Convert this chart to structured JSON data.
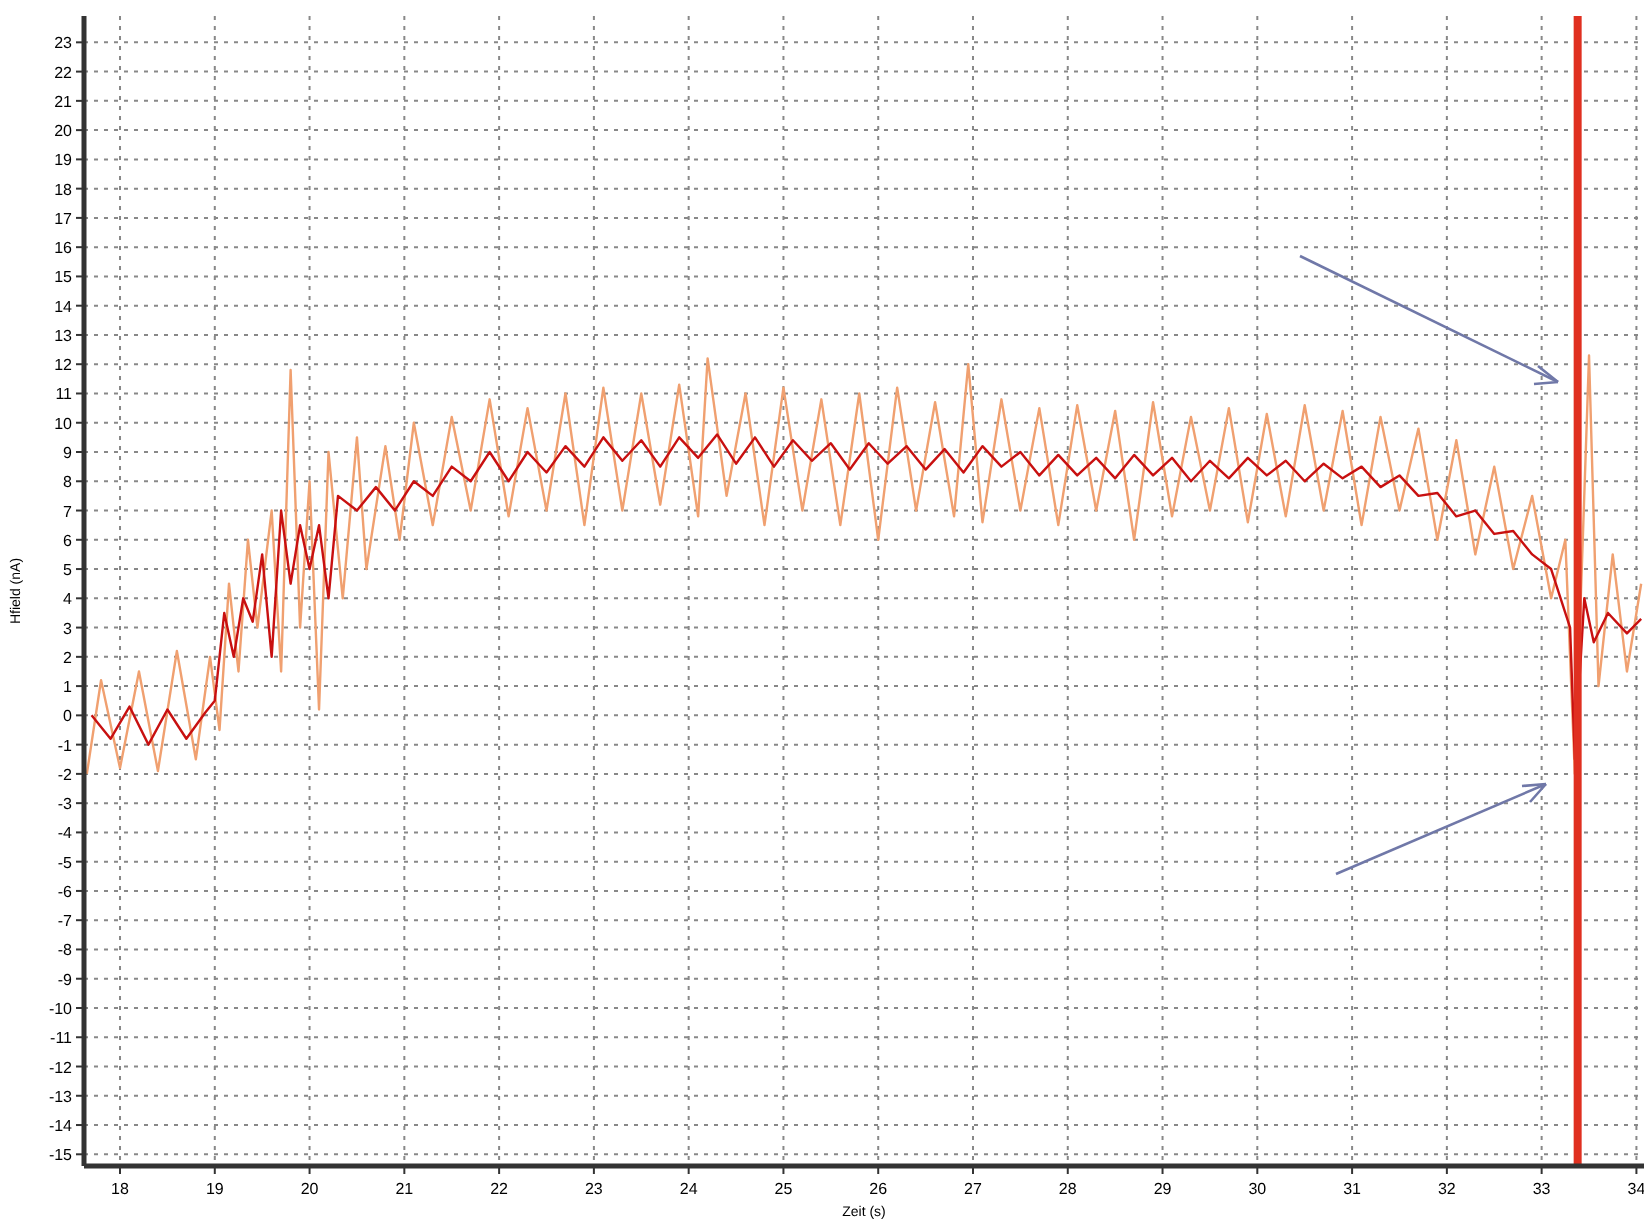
{
  "chart_data": {
    "type": "line",
    "xlabel": "Zeit (s)",
    "ylabel": "Hfield (nA)",
    "xlim": [
      17.62,
      34.08
    ],
    "ylim": [
      -15.4,
      23.9
    ],
    "xticks": [
      18,
      19,
      20,
      21,
      22,
      23,
      24,
      25,
      26,
      27,
      28,
      29,
      30,
      31,
      32,
      33,
      34
    ],
    "yticks": [
      -15,
      -14,
      -13,
      -12,
      -11,
      -10,
      -9,
      -8,
      -7,
      -6,
      -5,
      -4,
      -3,
      -2,
      -1,
      0,
      1,
      2,
      3,
      4,
      5,
      6,
      7,
      8,
      9,
      10,
      11,
      12,
      13,
      14,
      15,
      16,
      17,
      18,
      19,
      20,
      21,
      22,
      23
    ],
    "grid": true,
    "marker": "none",
    "line_style": "solid",
    "ref_lines": [
      {
        "axis": "x",
        "value": 33.38,
        "color": "#e03020"
      }
    ],
    "series": [
      {
        "color": "#f0a070",
        "x": [
          17.65,
          17.8,
          18.0,
          18.2,
          18.4,
          18.6,
          18.8,
          18.95,
          19.05,
          19.15,
          19.25,
          19.35,
          19.45,
          19.6,
          19.7,
          19.8,
          19.9,
          20.0,
          20.1,
          20.2,
          20.35,
          20.5,
          20.6,
          20.8,
          20.95,
          21.1,
          21.3,
          21.5,
          21.7,
          21.9,
          22.1,
          22.3,
          22.5,
          22.7,
          22.9,
          23.1,
          23.3,
          23.5,
          23.7,
          23.9,
          24.1,
          24.2,
          24.4,
          24.6,
          24.8,
          25.0,
          25.2,
          25.4,
          25.6,
          25.8,
          26.0,
          26.2,
          26.4,
          26.6,
          26.8,
          26.95,
          27.1,
          27.3,
          27.5,
          27.7,
          27.9,
          28.1,
          28.3,
          28.5,
          28.7,
          28.9,
          29.1,
          29.3,
          29.5,
          29.7,
          29.9,
          30.1,
          30.3,
          30.5,
          30.7,
          30.9,
          31.1,
          31.3,
          31.5,
          31.7,
          31.9,
          32.1,
          32.3,
          32.5,
          32.7,
          32.9,
          33.1,
          33.25,
          33.35,
          33.5,
          33.6,
          33.75,
          33.9,
          34.05
        ],
        "values": [
          -2,
          1.2,
          -1.8,
          1.5,
          -1.9,
          2.2,
          -1.5,
          2,
          -0.5,
          4.5,
          1.5,
          6,
          3,
          7,
          1.5,
          11.8,
          3,
          8,
          0.2,
          9,
          4,
          9.5,
          5,
          9.2,
          6,
          10,
          6.5,
          10.2,
          7,
          10.8,
          6.8,
          10.5,
          7,
          11,
          6.5,
          11.2,
          7,
          11,
          7.2,
          11.3,
          6.8,
          12.2,
          7.5,
          11,
          6.5,
          11.2,
          7,
          10.8,
          6.5,
          11,
          6,
          11.2,
          7,
          10.7,
          6.8,
          12,
          6.6,
          10.8,
          7,
          10.5,
          6.5,
          10.6,
          7,
          10.4,
          6,
          10.7,
          6.8,
          10.2,
          7,
          10.5,
          6.6,
          10.3,
          6.8,
          10.6,
          7,
          10.4,
          6.5,
          10.2,
          7,
          9.8,
          6,
          9.4,
          5.5,
          8.5,
          5,
          7.5,
          4,
          6,
          -2,
          12.3,
          1,
          5.5,
          1.5,
          4.5
        ]
      },
      {
        "color": "#c81010",
        "x": [
          17.7,
          17.9,
          18.1,
          18.3,
          18.5,
          18.7,
          18.9,
          19.0,
          19.1,
          19.2,
          19.3,
          19.4,
          19.5,
          19.6,
          19.7,
          19.8,
          19.9,
          20.0,
          20.1,
          20.2,
          20.3,
          20.5,
          20.7,
          20.9,
          21.1,
          21.3,
          21.5,
          21.7,
          21.9,
          22.1,
          22.3,
          22.5,
          22.7,
          22.9,
          23.1,
          23.3,
          23.5,
          23.7,
          23.9,
          24.1,
          24.3,
          24.5,
          24.7,
          24.9,
          25.1,
          25.3,
          25.5,
          25.7,
          25.9,
          26.1,
          26.3,
          26.5,
          26.7,
          26.9,
          27.1,
          27.3,
          27.5,
          27.7,
          27.9,
          28.1,
          28.3,
          28.5,
          28.7,
          28.9,
          29.1,
          29.3,
          29.5,
          29.7,
          29.9,
          30.1,
          30.3,
          30.5,
          30.7,
          30.9,
          31.1,
          31.3,
          31.5,
          31.7,
          31.9,
          32.1,
          32.3,
          32.5,
          32.7,
          32.9,
          33.1,
          33.3,
          33.35,
          33.45,
          33.55,
          33.7,
          33.9,
          34.05
        ],
        "values": [
          0,
          -0.8,
          0.3,
          -1,
          0.2,
          -0.8,
          0.1,
          0.5,
          3.5,
          2,
          4,
          3.2,
          5.5,
          2,
          7,
          4.5,
          6.5,
          5,
          6.5,
          4,
          7.5,
          7,
          7.8,
          7,
          8,
          7.5,
          8.5,
          8,
          9,
          8,
          9,
          8.3,
          9.2,
          8.5,
          9.5,
          8.7,
          9.4,
          8.5,
          9.5,
          8.8,
          9.6,
          8.6,
          9.5,
          8.5,
          9.4,
          8.7,
          9.3,
          8.4,
          9.3,
          8.6,
          9.2,
          8.4,
          9.1,
          8.3,
          9.2,
          8.5,
          9,
          8.2,
          8.9,
          8.2,
          8.8,
          8.1,
          8.9,
          8.2,
          8.8,
          8,
          8.7,
          8.1,
          8.8,
          8.2,
          8.7,
          8,
          8.6,
          8.1,
          8.5,
          7.8,
          8.2,
          7.5,
          7.6,
          6.8,
          7,
          6.2,
          6.3,
          5.5,
          5,
          3,
          -1.5,
          4,
          2.5,
          3.5,
          2.8,
          3.3
        ]
      }
    ]
  }
}
